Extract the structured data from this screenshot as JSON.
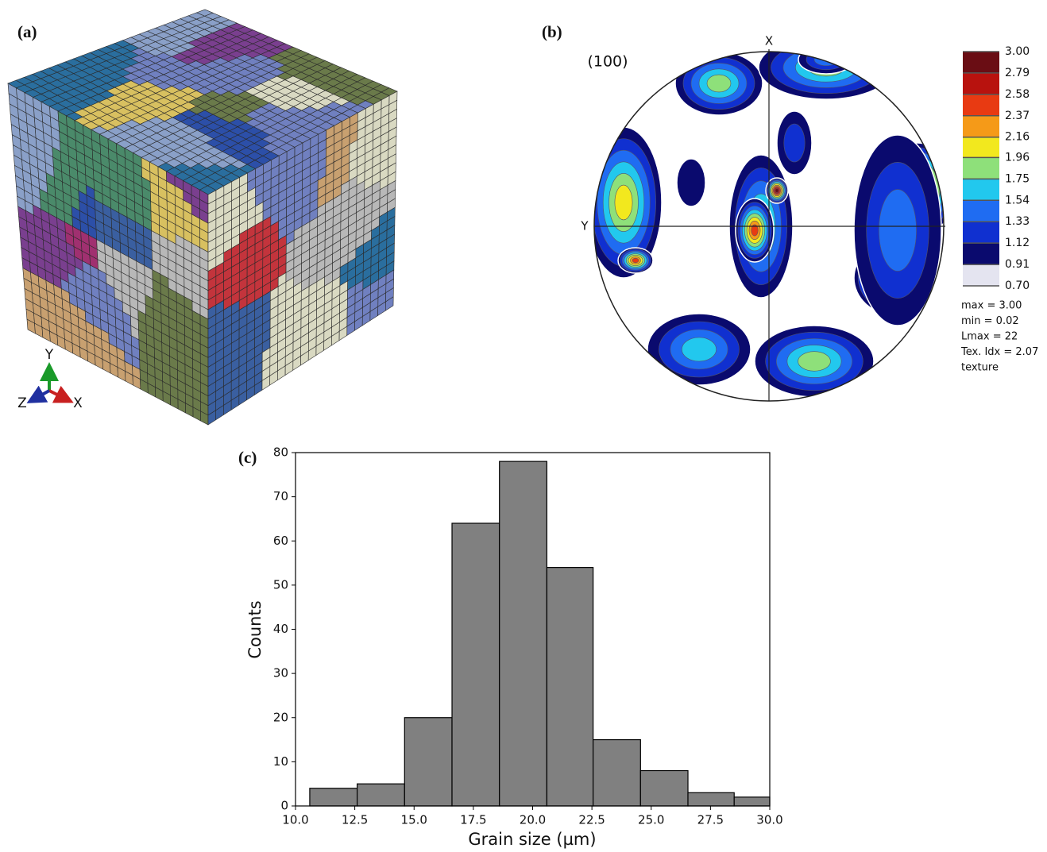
{
  "panel_a": {
    "label": "(a)",
    "axes": [
      "Y",
      "Z",
      "X"
    ]
  },
  "panel_b": {
    "label": "(b)",
    "plane": "(100)",
    "x_axis": "X",
    "y_axis": "Y",
    "colorbar": {
      "ticks": [
        {
          "value": 0.7,
          "label": "0.70"
        },
        0.91,
        1.12,
        1.33,
        1.54,
        1.75,
        1.96,
        2.16,
        2.37,
        2.58,
        2.79,
        {
          "value": 3.0,
          "label": "3.00"
        }
      ],
      "colors": [
        "#e4e4f0",
        "#0a0a6e",
        "#1030d0",
        "#1f6cf2",
        "#22c8ee",
        "#8ee07a",
        "#f2e81e",
        "#f59a18",
        "#e83a12",
        "#b8120e",
        "#6a0d14"
      ]
    },
    "stats": [
      "max = 3.00",
      "min = 0.02",
      "Lmax = 22",
      "Tex. Idx = 2.07",
      "texture"
    ]
  },
  "chart_data": {
    "type": "histogram",
    "label": "(c)",
    "x_label": "Grain size (µm)",
    "y_label": "Counts",
    "bins": [
      10.6,
      12.6,
      14.6,
      16.6,
      18.6,
      20.6,
      22.55,
      24.55,
      26.55,
      28.5,
      30.0
    ],
    "values": [
      4,
      5,
      20,
      64,
      78,
      54,
      15,
      8,
      3,
      2
    ],
    "color": "#808080",
    "xlim": [
      10,
      30
    ],
    "xticks": [
      {
        "value": 10,
        "label": "10.0"
      },
      12.5,
      {
        "value": 15,
        "label": "15.0"
      },
      17.5,
      {
        "value": 20,
        "label": "20.0"
      },
      22.5,
      {
        "value": 25,
        "label": "25.0"
      },
      27.5,
      {
        "value": 30,
        "label": "30.0"
      }
    ],
    "ylim": [
      0,
      80
    ],
    "yticks": [
      0,
      10,
      20,
      30,
      40,
      50,
      60,
      70,
      80
    ]
  }
}
